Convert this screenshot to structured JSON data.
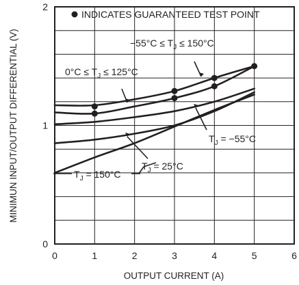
{
  "chart_data": {
    "type": "line",
    "title": "",
    "xlabel": "OUTPUT CURRENT (A)",
    "ylabel": "MINIMUN INPUT/OUTPUT DIFFERENTIAL (V)",
    "xlim": [
      0,
      6
    ],
    "ylim": [
      0,
      2
    ],
    "x_ticks": [
      "0",
      "1",
      "2",
      "3",
      "4",
      "5",
      "6"
    ],
    "y_ticks": [
      "0",
      "1",
      "2"
    ],
    "x_minor_step": 1,
    "y_minor_step": 0.2,
    "grid": true,
    "legend_text": "INDICATES GUARANTEED TEST POINT",
    "series": [
      {
        "name": "−55°C ≤ TJ ≤ 150°C",
        "x": [
          0,
          1,
          2,
          3,
          4,
          5
        ],
        "y": [
          1.17,
          1.17,
          1.22,
          1.29,
          1.4,
          1.5
        ]
      },
      {
        "name": "0°C ≤ TJ ≤ 125°C",
        "x": [
          0,
          1,
          2,
          3,
          4,
          5
        ],
        "y": [
          1.11,
          1.1,
          1.16,
          1.23,
          1.33,
          1.5
        ]
      },
      {
        "name": "TJ = −55°C",
        "x": [
          0,
          1,
          2,
          3,
          4,
          5
        ],
        "y": [
          1.01,
          1.03,
          1.07,
          1.12,
          1.2,
          1.31
        ]
      },
      {
        "name": "TJ = 25°C",
        "x": [
          0,
          1,
          2,
          3,
          4,
          5
        ],
        "y": [
          0.85,
          0.88,
          0.93,
          1.0,
          1.12,
          1.28
        ]
      },
      {
        "name": "TJ = 150°C",
        "x": [
          0,
          1,
          2,
          3,
          4,
          5
        ],
        "y": [
          0.6,
          0.73,
          0.85,
          0.99,
          1.13,
          1.26
        ]
      }
    ],
    "test_points": [
      {
        "x": 1,
        "y": 1.16
      },
      {
        "x": 1,
        "y": 1.1
      },
      {
        "x": 3,
        "y": 1.29
      },
      {
        "x": 3,
        "y": 1.23
      },
      {
        "x": 4,
        "y": 1.4
      },
      {
        "x": 4,
        "y": 1.33
      },
      {
        "x": 5,
        "y": 1.5
      }
    ],
    "annotations": [
      {
        "parts": [
          "−55°C ≤ T",
          "J",
          " ≤ 150°C"
        ],
        "at_x": 3.4,
        "at_y": 1.37
      },
      {
        "parts": [
          "0°C ≤ T",
          "J",
          " ≤ 125°C"
        ],
        "at_x": 1.7,
        "at_y": 1.19
      },
      {
        "parts": [
          "T",
          "J",
          " = −55°C"
        ],
        "at_x": 3.6,
        "at_y": 1.16
      },
      {
        "parts": [
          "T",
          "J",
          " = 25°C"
        ],
        "at_x": 2.0,
        "at_y": 0.93
      },
      {
        "parts": [
          "T",
          "J",
          " = 150°C"
        ],
        "at_x": 1.7,
        "at_y": 0.83
      }
    ]
  }
}
